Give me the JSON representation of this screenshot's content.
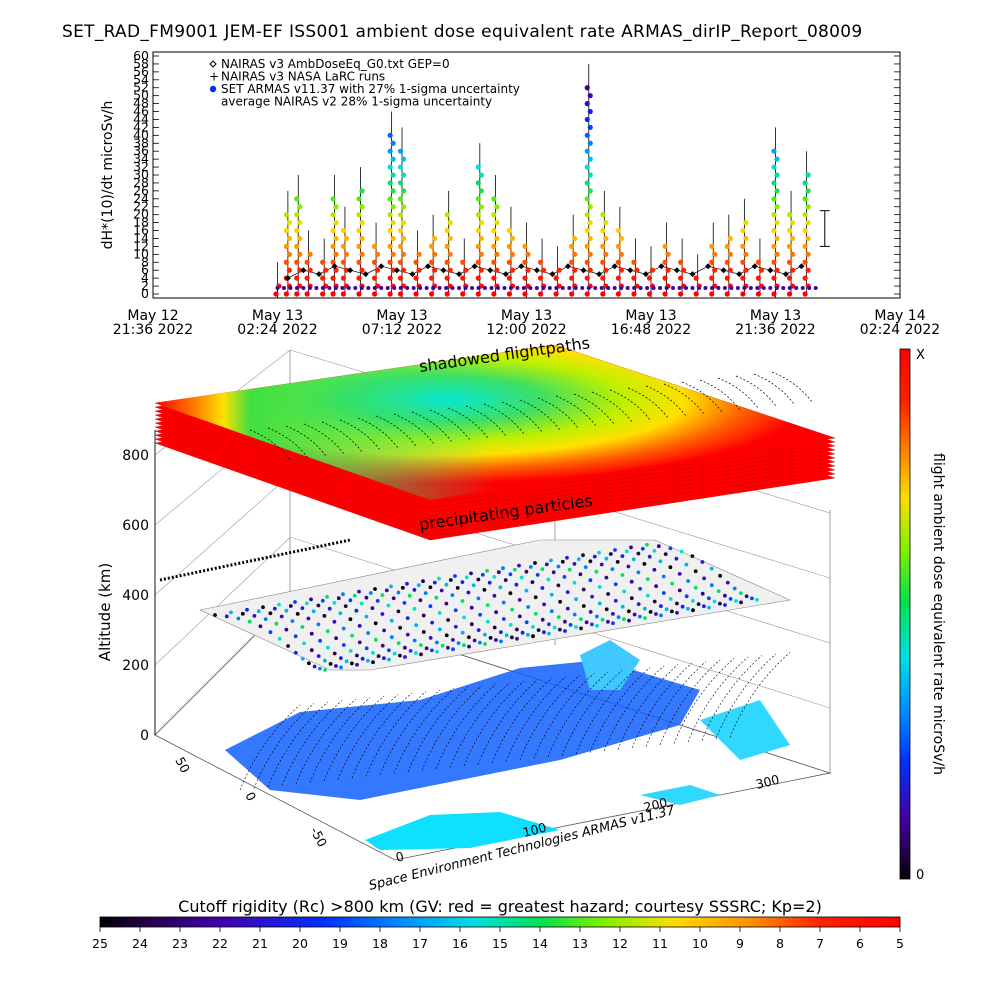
{
  "title": "SET_RAD_FM9001   JEM-EF ISS001 ambient dose equivalent rate ARMAS_dirIP_Report_08009",
  "chart_data": [
    {
      "type": "scatter",
      "title": "",
      "ylabel": "dH*(10)/dt microSv/h",
      "ylim": [
        0,
        60
      ],
      "y_ticks": [
        "0",
        "2",
        "4",
        "6",
        "8",
        "10",
        "12",
        "14",
        "16",
        "18",
        "20",
        "22",
        "24",
        "26",
        "28",
        "30",
        "32",
        "34",
        "36",
        "38",
        "40",
        "42",
        "44",
        "46",
        "48",
        "50",
        "52",
        "54",
        "56",
        "58",
        "60"
      ],
      "x_ticks": [
        {
          "date": "May 12",
          "time": "21:36 2022"
        },
        {
          "date": "May 13",
          "time": "02:24 2022"
        },
        {
          "date": "May 13",
          "time": "07:12 2022"
        },
        {
          "date": "May 13",
          "time": "12:00 2022"
        },
        {
          "date": "May 13",
          "time": "16:48 2022"
        },
        {
          "date": "May 13",
          "time": "21:36 2022"
        },
        {
          "date": "May 14",
          "time": "02:24 2022"
        }
      ],
      "legend": [
        {
          "marker": "diamond",
          "label": "NAIRAS v3 AmbDoseEq_G0.txt GEP=0"
        },
        {
          "marker": "plus",
          "label": "NAIRAS v3 NASA LaRC runs"
        },
        {
          "marker": "dot",
          "label": "SET ARMAS v11.37 with 27% 1-sigma uncertainty"
        },
        {
          "marker": "none",
          "label": "average NAIRAS v2 28% 1-sigma uncertainty"
        }
      ],
      "legend_position": "top-left",
      "series": [
        {
          "name": "SET ARMAS v11.37 with 27% 1-sigma uncertainty",
          "x_hours_from_first_tick": [
            4.8,
            5.2,
            5.6,
            6.0,
            6.6,
            7.0,
            7.4,
            8.0,
            8.6,
            9.2,
            9.6,
            10.2,
            10.8,
            11.4,
            12.0,
            12.6,
            13.2,
            13.8,
            14.4,
            15.0,
            15.6,
            16.2,
            16.8,
            17.4,
            18.0,
            18.6,
            19.2,
            19.8,
            20.4,
            21.0,
            21.6,
            22.2,
            22.8,
            23.4,
            24.0,
            24.6,
            25.2
          ],
          "values": [
            2,
            20,
            24,
            10,
            8,
            24,
            16,
            26,
            12,
            40,
            36,
            10,
            14,
            20,
            8,
            32,
            24,
            16,
            12,
            8,
            6,
            14,
            52,
            20,
            16,
            8,
            6,
            12,
            8,
            4,
            12,
            14,
            18,
            8,
            36,
            20,
            30
          ]
        },
        {
          "name": "NAIRAS v3 AmbDoseEq_G0.txt GEP=0",
          "x_hours_from_first_tick": [
            5.2,
            5.8,
            6.4,
            7.0,
            7.6,
            8.2,
            8.8,
            9.4,
            10.0,
            10.6,
            11.2,
            11.8,
            12.4,
            13.0,
            13.6,
            14.2,
            14.8,
            15.4,
            16.0,
            16.6,
            17.2,
            17.8,
            18.4,
            19.0,
            19.6,
            20.2,
            20.8,
            21.4,
            22.0,
            22.6,
            23.2,
            23.8,
            24.4,
            25.0
          ],
          "values": [
            4,
            6,
            5,
            7,
            6,
            5,
            7,
            6,
            5,
            7,
            6,
            5,
            7,
            6,
            5,
            7,
            6,
            5,
            7,
            6,
            5,
            7,
            6,
            5,
            7,
            6,
            5,
            7,
            6,
            5,
            7,
            6,
            5,
            7
          ]
        }
      ],
      "error_bar": {
        "label": "average NAIRAS v2 28% 1-sigma uncertainty",
        "low": 12,
        "high": 21
      }
    },
    {
      "type": "heatmap",
      "title": "",
      "ylabel": "Altitude (km)",
      "z_ticks": [
        "0",
        "200",
        "400",
        "600",
        "800"
      ],
      "x_ticks": [
        "0",
        "100",
        "200",
        "300"
      ],
      "y_ticks": [
        "50",
        "0",
        "-50"
      ],
      "annotations": [
        "shadowed flightpaths",
        "precipitating particles"
      ],
      "credit": "Space Environment Technologies ARMAS v11.37"
    },
    {
      "type": "heatmap",
      "colorbar": "vertical",
      "label": "flight ambient dose equivalent rate microSv/h",
      "top_label": "X",
      "bottom_label": "0"
    },
    {
      "type": "heatmap",
      "colorbar": "horizontal",
      "label": "Cutoff rigidity (Rc) >800 km (GV: red = greatest hazard; courtesy SSSRC; Kp=2)",
      "ticks": [
        "25",
        "24",
        "23",
        "22",
        "21",
        "20",
        "19",
        "18",
        "17",
        "16",
        "15",
        "14",
        "13",
        "12",
        "11",
        "10",
        "9",
        "8",
        "7",
        "6",
        "5"
      ]
    }
  ]
}
